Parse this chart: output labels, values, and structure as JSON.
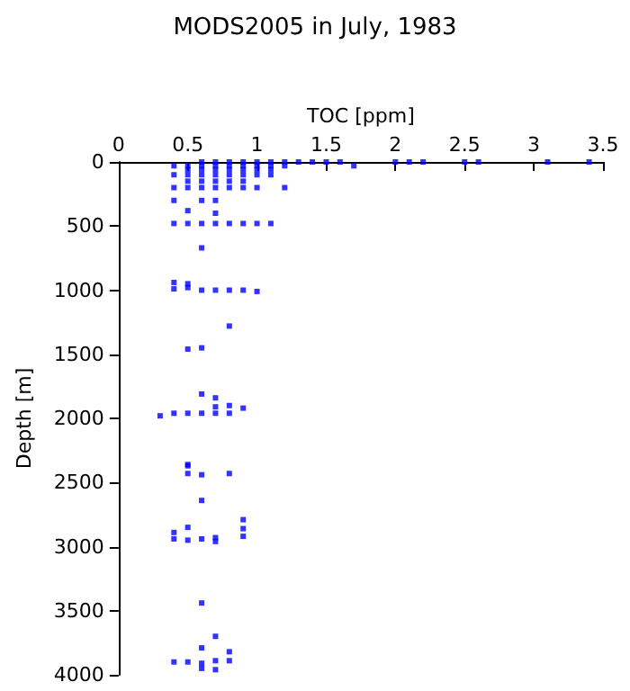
{
  "chart_data": {
    "type": "scatter",
    "title": "MODS2005 in July, 1983",
    "xlabel": "TOC [ppm]",
    "ylabel": "Depth [m]",
    "xlim": [
      0,
      3.5
    ],
    "xticks": [
      0,
      0.5,
      1,
      1.5,
      2,
      2.5,
      3,
      3.5
    ],
    "ylim": [
      4000,
      0
    ],
    "yticks": [
      0,
      500,
      1000,
      1500,
      2000,
      2500,
      3000,
      3500,
      4000
    ],
    "marker": "square",
    "series": [
      {
        "color": "#0000ff",
        "x": [
          0.6,
          0.7,
          0.8,
          0.9,
          1.0,
          1.1,
          1.2,
          1.3,
          1.4,
          1.5,
          1.6,
          2.0,
          2.1,
          2.2,
          2.5,
          2.6,
          3.1,
          3.4,
          0.4,
          0.5,
          0.6,
          0.7,
          0.8,
          0.9,
          1.0,
          1.1,
          1.2,
          1.7,
          0.5,
          0.6,
          0.7,
          0.8,
          0.9,
          1.0,
          1.1,
          0.4,
          0.5,
          0.6,
          0.7,
          0.8,
          0.9,
          1.0,
          1.1,
          0.5,
          0.6,
          0.7,
          0.8,
          0.9,
          0.4,
          0.5,
          0.6,
          0.7,
          0.8,
          0.9,
          1.0,
          1.2,
          0.4,
          0.6,
          0.7,
          0.5,
          0.7,
          0.4,
          0.5,
          0.6,
          0.7,
          0.8,
          0.9,
          1.0,
          1.1,
          0.6,
          0.4,
          0.4,
          0.5,
          0.5,
          0.6,
          0.7,
          0.8,
          0.9,
          1.0,
          0.8,
          0.5,
          0.6,
          0.6,
          0.7,
          0.7,
          0.8,
          0.9,
          0.4,
          0.5,
          0.6,
          0.7,
          0.8,
          0.3,
          0.5,
          0.5,
          0.5,
          0.6,
          0.8,
          0.6,
          0.9,
          0.9,
          0.9,
          0.5,
          0.4,
          0.4,
          0.5,
          0.6,
          0.7,
          0.7,
          0.6,
          0.7,
          0.6,
          0.8,
          0.8,
          0.4,
          0.5,
          0.6,
          0.6,
          0.7,
          0.7
        ],
        "values": [
          0,
          0,
          0,
          0,
          0,
          0,
          0,
          0,
          0,
          0,
          0,
          0,
          0,
          0,
          0,
          0,
          0,
          0,
          30,
          30,
          30,
          30,
          30,
          30,
          30,
          30,
          30,
          30,
          60,
          60,
          60,
          60,
          60,
          60,
          60,
          100,
          100,
          100,
          100,
          100,
          100,
          100,
          100,
          150,
          150,
          150,
          150,
          150,
          200,
          200,
          200,
          200,
          200,
          200,
          200,
          200,
          300,
          300,
          300,
          380,
          400,
          480,
          480,
          480,
          480,
          480,
          480,
          480,
          480,
          670,
          940,
          990,
          950,
          980,
          1000,
          1000,
          1000,
          1000,
          1010,
          1280,
          1460,
          1450,
          1810,
          1840,
          1910,
          1900,
          1920,
          1960,
          1960,
          1960,
          1960,
          1960,
          1980,
          2360,
          2370,
          2430,
          2440,
          2430,
          2640,
          2790,
          2860,
          2920,
          2850,
          2890,
          2940,
          2950,
          2940,
          2930,
          2960,
          3440,
          3700,
          3790,
          3820,
          3890,
          3900,
          3900,
          3910,
          3950,
          3890,
          3960
        ]
      }
    ]
  }
}
